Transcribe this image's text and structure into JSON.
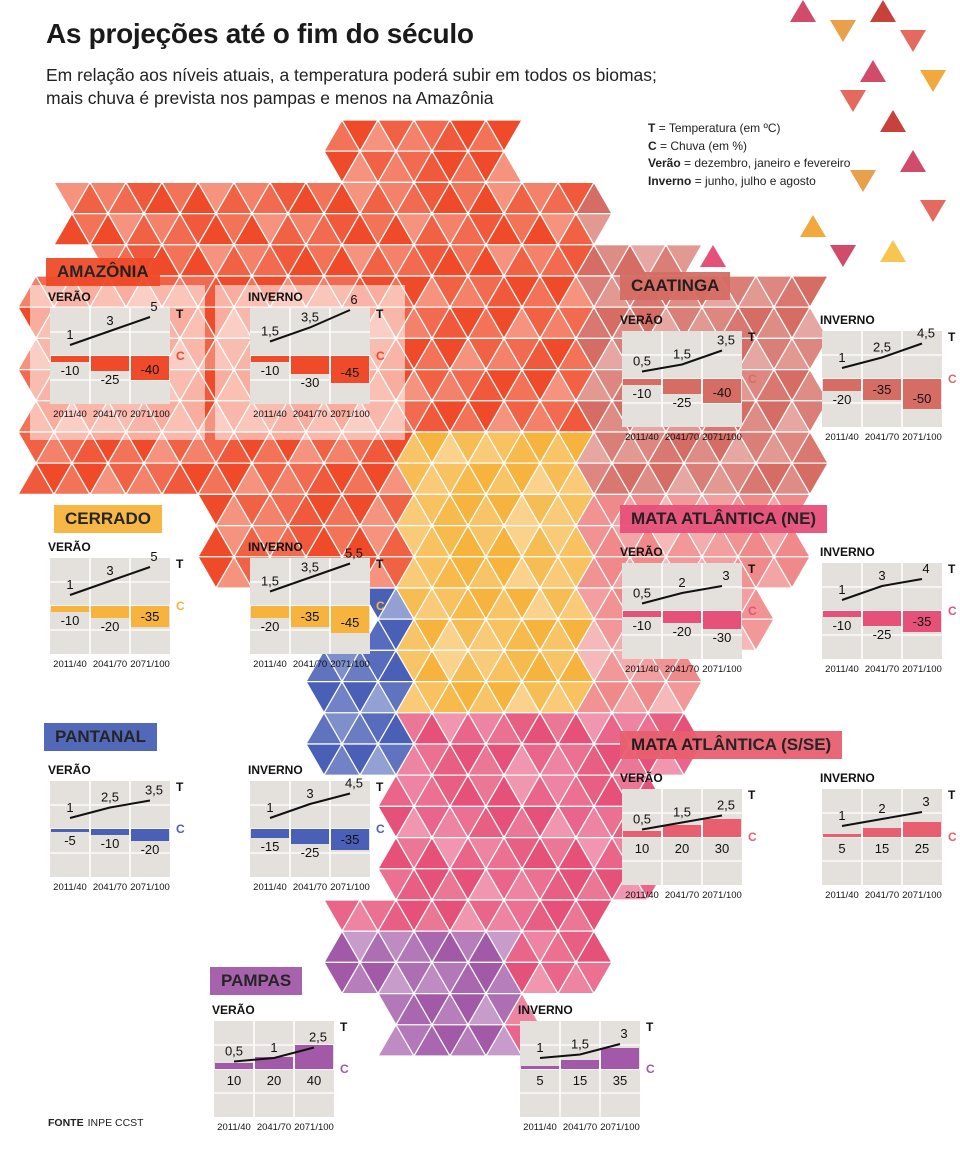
{
  "header": {
    "title": "As projeções até o fim do século",
    "subtitle": "Em relação aos níveis atuais, a temperatura poderá subir em todos os biomas; mais chuva é prevista nos pampas e menos na Amazônia"
  },
  "legend": {
    "t_key": "T",
    "t_text": "= Temperatura (em ºC)",
    "c_key": "C",
    "c_text": "= Chuva (em %)",
    "verao_key": "Verão",
    "verao_text": "= dezembro, janeiro e fevereiro",
    "inverno_key": "Inverno",
    "inverno_text": "= junho, julho e agosto"
  },
  "source": {
    "label": "FONTE",
    "text": "INPE CCST"
  },
  "chart_data": {
    "type": "bar",
    "periods": [
      "2011/40",
      "2041/70",
      "2071/100"
    ],
    "t_label": "T",
    "c_label": "C",
    "biomes": [
      {
        "id": "amazonia",
        "name": "AMAZÔNIA",
        "color": "#ef4b2a",
        "seasons": [
          {
            "name": "VERÃO",
            "temperature": [
              1,
              3,
              5
            ],
            "temperature_labels": [
              "1",
              "3",
              "5"
            ],
            "rain": [
              -10,
              -25,
              -40
            ],
            "rain_labels": [
              "-10",
              "-25",
              "-40"
            ]
          },
          {
            "name": "INVERNO",
            "temperature": [
              1.5,
              3.5,
              6
            ],
            "temperature_labels": [
              "1,5",
              "3,5",
              "6"
            ],
            "rain": [
              -10,
              -30,
              -45
            ],
            "rain_labels": [
              "-10",
              "-30",
              "-45"
            ]
          }
        ]
      },
      {
        "id": "caatinga",
        "name": "CAATINGA",
        "color": "#d56d64",
        "seasons": [
          {
            "name": "VERÃO",
            "temperature": [
              0.5,
              1.5,
              3.5
            ],
            "temperature_labels": [
              "0,5",
              "1,5",
              "3,5"
            ],
            "rain": [
              -10,
              -25,
              -40
            ],
            "rain_labels": [
              "-10",
              "-25",
              "-40"
            ]
          },
          {
            "name": "INVERNO",
            "temperature": [
              1,
              2.5,
              4.5
            ],
            "temperature_labels": [
              "1",
              "2,5",
              "4,5"
            ],
            "rain": [
              -20,
              -35,
              -50
            ],
            "rain_labels": [
              "-20",
              "-35",
              "-50"
            ]
          }
        ]
      },
      {
        "id": "cerrado",
        "name": "CERRADO",
        "color": "#f6b43e",
        "seasons": [
          {
            "name": "VERÃO",
            "temperature": [
              1,
              3,
              5
            ],
            "temperature_labels": [
              "1",
              "3",
              "5"
            ],
            "rain": [
              -10,
              -20,
              -35
            ],
            "rain_labels": [
              "-10",
              "-20",
              "-35"
            ]
          },
          {
            "name": "INVERNO",
            "temperature": [
              1.5,
              3.5,
              5.5
            ],
            "temperature_labels": [
              "1,5",
              "3,5",
              "5,5"
            ],
            "rain": [
              -20,
              -35,
              -45
            ],
            "rain_labels": [
              "-20",
              "-35",
              "-45"
            ]
          }
        ]
      },
      {
        "id": "mata_ne",
        "name": "MATA ATLÂNTICA (NE)",
        "color": "#e6517a",
        "seasons": [
          {
            "name": "VERÃO",
            "temperature": [
              0.5,
              2,
              3
            ],
            "temperature_labels": [
              "0,5",
              "2",
              "3"
            ],
            "rain": [
              -10,
              -20,
              -30
            ],
            "rain_labels": [
              "-10",
              "-20",
              "-30"
            ]
          },
          {
            "name": "INVERNO",
            "temperature": [
              1,
              3,
              4
            ],
            "temperature_labels": [
              "1",
              "3",
              "4"
            ],
            "rain": [
              -10,
              -25,
              -35
            ],
            "rain_labels": [
              "-10",
              "-25",
              "-35"
            ]
          }
        ]
      },
      {
        "id": "pantanal",
        "name": "PANTANAL",
        "color": "#4960b6",
        "seasons": [
          {
            "name": "VERÃO",
            "temperature": [
              1,
              2.5,
              3.5
            ],
            "temperature_labels": [
              "1",
              "2,5",
              "3,5"
            ],
            "rain": [
              -5,
              -10,
              -20
            ],
            "rain_labels": [
              "-5",
              "-10",
              "-20"
            ]
          },
          {
            "name": "INVERNO",
            "temperature": [
              1,
              3,
              4.5
            ],
            "temperature_labels": [
              "1",
              "3",
              "4,5"
            ],
            "rain": [
              -15,
              -25,
              -35
            ],
            "rain_labels": [
              "-15",
              "-25",
              "-35"
            ]
          }
        ]
      },
      {
        "id": "mata_sse",
        "name": "MATA ATLÂNTICA (S/SE)",
        "color": "#e85f6f",
        "seasons": [
          {
            "name": "VERÃO",
            "temperature": [
              0.5,
              1.5,
              2.5
            ],
            "temperature_labels": [
              "0,5",
              "1,5",
              "2,5"
            ],
            "rain": [
              10,
              20,
              30
            ],
            "rain_labels": [
              "10",
              "20",
              "30"
            ]
          },
          {
            "name": "INVERNO",
            "temperature": [
              1,
              2,
              3
            ],
            "temperature_labels": [
              "1",
              "2",
              "3"
            ],
            "rain": [
              5,
              15,
              25
            ],
            "rain_labels": [
              "5",
              "15",
              "25"
            ]
          }
        ]
      },
      {
        "id": "pampas",
        "name": "PAMPAS",
        "color": "#a25aa8",
        "seasons": [
          {
            "name": "VERÃO",
            "temperature": [
              0.5,
              1,
              2.5
            ],
            "temperature_labels": [
              "0,5",
              "1",
              "2,5"
            ],
            "rain": [
              10,
              20,
              40
            ],
            "rain_labels": [
              "10",
              "20",
              "40"
            ]
          },
          {
            "name": "INVERNO",
            "temperature": [
              1,
              1.5,
              3
            ],
            "temperature_labels": [
              "1",
              "1,5",
              "3"
            ],
            "rain": [
              5,
              15,
              35
            ],
            "rain_labels": [
              "5",
              "15",
              "35"
            ]
          }
        ]
      }
    ]
  }
}
